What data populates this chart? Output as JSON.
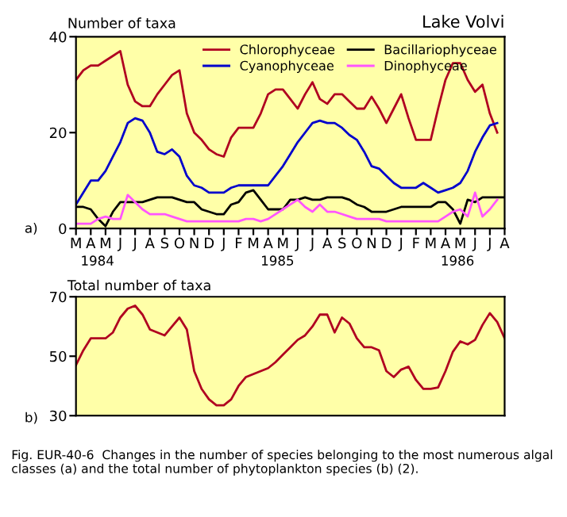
{
  "chart_data": [
    {
      "type": "line",
      "title": "Lake Volvi",
      "ylabel": "Number of taxa",
      "categories": [
        "M",
        null,
        "A",
        null,
        "M",
        null,
        "J",
        null,
        "J",
        null,
        "A",
        null,
        "S",
        null,
        "O",
        null,
        "N",
        null,
        "D",
        null,
        "J",
        null,
        "F",
        null,
        "M",
        null,
        "A",
        null,
        "M",
        null,
        "J",
        null,
        "J",
        null,
        "A",
        null,
        "S",
        null,
        "O",
        null,
        "N",
        null,
        "D",
        null,
        "J",
        null,
        "F",
        null,
        "M",
        null,
        "A",
        null,
        "M",
        null,
        "J",
        null,
        "J",
        null,
        "A"
      ],
      "ylim": [
        0,
        40
      ],
      "yticks": [
        0,
        20,
        40
      ],
      "legend": "top right",
      "grid": false,
      "annotations": [
        "1984",
        "1985",
        "1986",
        "a)"
      ],
      "series": [
        {
          "name": "Chlorophyceae",
          "color": "#b00020",
          "values": [
            31,
            33,
            34,
            34,
            35,
            36,
            37,
            30,
            26.5,
            25.5,
            25.5,
            28,
            30,
            32,
            33,
            24,
            20,
            18.5,
            16.5,
            15.5,
            15,
            19,
            21,
            21,
            21,
            24,
            28,
            29,
            29,
            27,
            25,
            28,
            30.5,
            27,
            26,
            28,
            28,
            26.5,
            25,
            25,
            27.5,
            25,
            22,
            25,
            28,
            23,
            18.5,
            18.5,
            18.5,
            25,
            31,
            34.5,
            34.5,
            31,
            28.5,
            30,
            24,
            20,
            null
          ]
        },
        {
          "name": "Cyanophyceae",
          "color": "#0000cc",
          "values": [
            5,
            7.5,
            10,
            10,
            12,
            15,
            18,
            22,
            23,
            22.5,
            20,
            16,
            15.5,
            16.5,
            15,
            11,
            9,
            8.5,
            7.5,
            7.5,
            7.5,
            8.5,
            9,
            9,
            9,
            9,
            9,
            11,
            13,
            15.5,
            18,
            20,
            22,
            22.5,
            22,
            22,
            21,
            19.5,
            18.5,
            16,
            13,
            12.5,
            11,
            9.5,
            8.5,
            8.5,
            8.5,
            9.5,
            8.5,
            7.5,
            8,
            8.5,
            9.5,
            12,
            16,
            19,
            21.5,
            22,
            null
          ]
        },
        {
          "name": "Bacillariophyceae",
          "color": "#000000",
          "values": [
            4.5,
            4.5,
            4,
            2,
            0.5,
            3.5,
            5.5,
            5.5,
            5.5,
            5.5,
            6,
            6.5,
            6.5,
            6.5,
            6,
            5.5,
            5.5,
            4,
            3.5,
            3,
            3,
            5,
            5.5,
            7.5,
            8,
            6,
            4,
            4,
            4,
            6,
            6,
            6.5,
            6,
            6,
            6.5,
            6.5,
            6.5,
            6,
            5,
            4.5,
            3.5,
            3.5,
            3.5,
            4,
            4.5,
            4.5,
            4.5,
            4.5,
            4.5,
            5.5,
            5.5,
            4,
            1,
            6,
            5.5,
            6.5,
            6.5,
            6.5,
            6.5
          ]
        },
        {
          "name": "Dinophyceae",
          "color": "#ff55ff",
          "values": [
            1,
            1,
            1,
            2,
            2.5,
            2,
            2,
            7,
            5.5,
            4,
            3,
            3,
            3,
            2.5,
            2,
            1.5,
            1.5,
            1.5,
            1.5,
            1.5,
            1.5,
            1.5,
            1.5,
            2,
            2,
            1.5,
            2,
            3,
            4,
            5,
            6,
            4.5,
            3.5,
            5,
            3.5,
            3.5,
            3,
            2.5,
            2,
            2,
            2,
            2,
            1.5,
            1.5,
            1.5,
            1.5,
            1.5,
            1.5,
            1.5,
            1.5,
            2.5,
            3.5,
            4,
            2.5,
            7.5,
            2.5,
            4,
            6,
            null
          ]
        }
      ]
    },
    {
      "type": "line",
      "ylabel": "Total number of taxa",
      "categories": [
        null,
        null,
        null,
        null,
        null,
        null,
        null,
        null,
        null,
        null,
        null,
        null,
        null,
        null,
        null,
        null,
        null,
        null,
        null,
        null,
        null,
        null,
        null,
        null,
        null,
        null,
        null,
        null,
        null,
        null,
        null,
        null,
        null,
        null,
        null,
        null,
        null,
        null,
        null,
        null,
        null,
        null,
        null,
        null,
        null,
        null,
        null,
        null,
        null,
        null,
        null,
        null,
        null,
        null,
        null,
        null,
        null,
        null,
        null
      ],
      "ylim": [
        30,
        70
      ],
      "yticks": [
        30,
        50,
        70
      ],
      "tick_labels": "y",
      "grid": false,
      "annotations": [
        "b)",
        "Fig. EUR-40-6  Changes in the number of species belonging to the most numerous algal classes (a) and the total number of phytoplankton species (b) (2)."
      ],
      "series": [
        {
          "color": "#b00020",
          "values": [
            47,
            52,
            56,
            56,
            56,
            58,
            63,
            66,
            67,
            64,
            59,
            58,
            57,
            60,
            63,
            59,
            45,
            39,
            35.5,
            33.5,
            33.5,
            35.5,
            40,
            43,
            44,
            45,
            46,
            48,
            50.5,
            53,
            55.5,
            57,
            60,
            64,
            64,
            58,
            63,
            61,
            56,
            53,
            53,
            52,
            45,
            43,
            45.5,
            46.5,
            42,
            39,
            39,
            39.5,
            45,
            51.5,
            55,
            54,
            55.5,
            60.5,
            64.5,
            61.5,
            56
          ]
        }
      ]
    }
  ]
}
